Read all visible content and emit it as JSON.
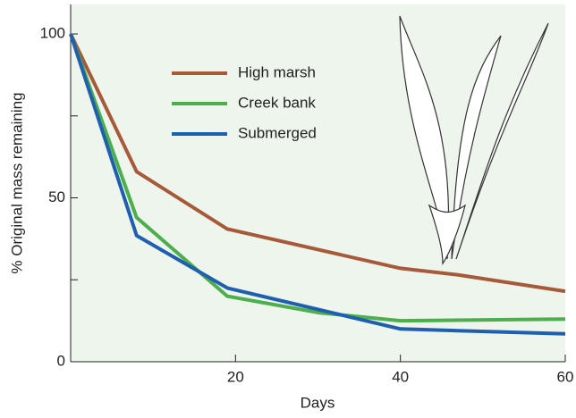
{
  "chart_data": {
    "type": "line",
    "x_label": "Days",
    "y_label": "% Original mass remaining",
    "xlim": [
      0,
      60
    ],
    "xticks": [
      20,
      40,
      60
    ],
    "ylim": [
      0,
      109
    ],
    "yticks": [
      0,
      50,
      100
    ],
    "yminor": [
      25,
      75
    ],
    "legend": "upper left",
    "series": [
      {
        "name": "High marsh",
        "color": "#a65a3a",
        "x": [
          0,
          8,
          19,
          40,
          47,
          60
        ],
        "values": [
          100,
          58,
          40.5,
          28.5,
          26.5,
          21.5
        ]
      },
      {
        "name": "Creek bank",
        "color": "#4caf4c",
        "x": [
          0,
          8,
          19,
          30,
          40,
          60
        ],
        "values": [
          100,
          44,
          20,
          15,
          12.5,
          13
        ]
      },
      {
        "name": "Submerged",
        "color": "#1f5fad",
        "x": [
          0,
          8,
          19,
          40,
          60
        ],
        "values": [
          100,
          38.5,
          22.5,
          10,
          8.5
        ]
      }
    ]
  }
}
